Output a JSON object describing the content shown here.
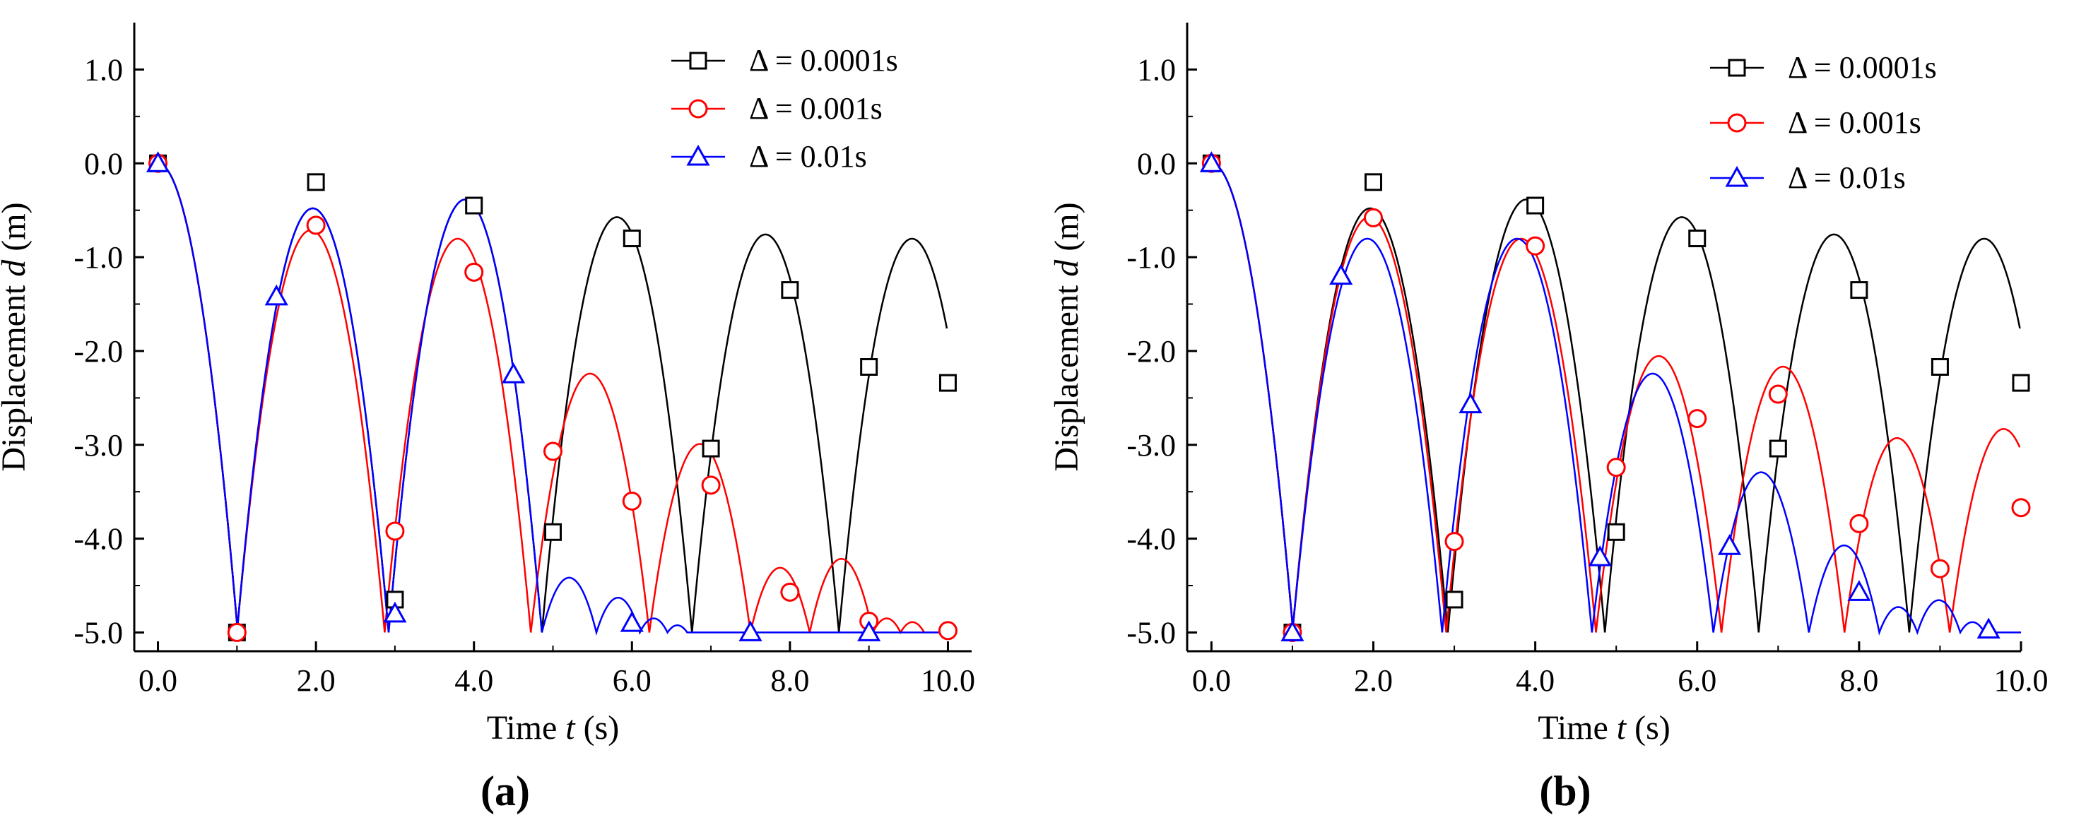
{
  "chart_data": [
    {
      "panel": "a",
      "panel_label": "(a)",
      "type": "line",
      "xlabel": "Time t (s)",
      "xlabel_parts": [
        "Time ",
        "t",
        " (s)"
      ],
      "ylabel": "Displacement d (m)",
      "ylabel_parts": [
        "Displacement ",
        "d",
        " (m)"
      ],
      "xlim": [
        -0.3,
        10.3
      ],
      "ylim": [
        -5.2,
        1.5
      ],
      "xticks": [
        0,
        2,
        4,
        6,
        8,
        10
      ],
      "xtick_labels": [
        "0.0",
        "2.0",
        "4.0",
        "6.0",
        "8.0",
        "10.0"
      ],
      "yticks": [
        1,
        0,
        -1,
        -2,
        -3,
        -4,
        -5
      ],
      "ytick_labels": [
        "1.0",
        "0.0",
        "-1.0",
        "-2.0",
        "-3.0",
        "-4.0",
        "-5.0"
      ],
      "legend_position": "top-right",
      "series": [
        {
          "name": "Δ = 0.0001s",
          "color": "#000000",
          "marker": "square",
          "bounces": [
            [
              0,
              1.0
            ],
            [
              1.0,
              2.92
            ],
            [
              2.92,
              4.86
            ],
            [
              4.86,
              6.76
            ],
            [
              6.76,
              8.62
            ],
            [
              8.62,
              10.47
            ]
          ],
          "markers": [
            [
              0,
              0
            ],
            [
              1,
              -5.0
            ],
            [
              2,
              -0.2
            ],
            [
              3,
              -4.65
            ],
            [
              4,
              -0.45
            ],
            [
              5,
              -3.93
            ],
            [
              6,
              -0.8
            ],
            [
              7,
              -3.04
            ],
            [
              8,
              -1.35
            ],
            [
              9,
              -2.17
            ],
            [
              10,
              -2.34
            ]
          ]
        },
        {
          "name": "Δ = 0.001s",
          "color": "#ff0000",
          "marker": "circle",
          "bounces": [
            [
              0,
              1.0
            ],
            [
              1.0,
              2.87
            ],
            [
              2.87,
              4.72
            ],
            [
              4.72,
              6.22
            ],
            [
              6.22,
              7.5
            ],
            [
              7.5,
              8.25
            ],
            [
              8.25,
              9.05
            ],
            [
              9.05,
              9.4
            ],
            [
              9.4,
              9.7
            ]
          ],
          "markers": [
            [
              0,
              0
            ],
            [
              1,
              -5.0
            ],
            [
              2,
              -0.66
            ],
            [
              3,
              -3.92
            ],
            [
              4,
              -1.16
            ],
            [
              5,
              -3.07
            ],
            [
              6,
              -3.6
            ],
            [
              7,
              -3.43
            ],
            [
              8,
              -4.57
            ],
            [
              9,
              -4.88
            ],
            [
              10,
              -4.98
            ]
          ]
        },
        {
          "name": "Δ = 0.01s",
          "color": "#0000ff",
          "marker": "triangle",
          "bounces": [
            [
              0,
              1.0
            ],
            [
              1.0,
              2.92
            ],
            [
              2.92,
              4.86
            ],
            [
              4.86,
              5.55
            ],
            [
              5.55,
              6.1
            ],
            [
              6.1,
              6.45
            ],
            [
              6.45,
              6.7
            ]
          ],
          "markers": [
            [
              0,
              0
            ],
            [
              1.5,
              -1.42
            ],
            [
              3,
              -4.8
            ],
            [
              4.5,
              -2.25
            ],
            [
              6,
              -4.9
            ],
            [
              7.5,
              -5.0
            ],
            [
              9,
              -5.0
            ]
          ]
        }
      ]
    },
    {
      "panel": "b",
      "panel_label": "(b)",
      "type": "line",
      "xlabel": "Time t (s)",
      "xlabel_parts": [
        "Time ",
        "t",
        " (s)"
      ],
      "ylabel": "Displacement d (m)",
      "ylabel_parts": [
        "Displacement ",
        "d",
        " (m)"
      ],
      "xlim": [
        -0.3,
        10.0
      ],
      "ylim": [
        -5.2,
        1.5
      ],
      "xticks": [
        0,
        2,
        4,
        6,
        8,
        10
      ],
      "xtick_labels": [
        "0.0",
        "2.0",
        "4.0",
        "6.0",
        "8.0",
        "10.0"
      ],
      "yticks": [
        1,
        0,
        -1,
        -2,
        -3,
        -4,
        -5
      ],
      "ytick_labels": [
        "1.0",
        "0.0",
        "-1.0",
        "-2.0",
        "-3.0",
        "-4.0",
        "-5.0"
      ],
      "legend_position": "top-right",
      "series": [
        {
          "name": "Δ = 0.0001s",
          "color": "#000000",
          "marker": "square",
          "bounces": [
            [
              0,
              1.0
            ],
            [
              1.0,
              2.92
            ],
            [
              2.92,
              4.86
            ],
            [
              4.86,
              6.76
            ],
            [
              6.76,
              8.62
            ],
            [
              8.62,
              10.47
            ]
          ],
          "markers": [
            [
              0,
              0
            ],
            [
              1,
              -5.0
            ],
            [
              2,
              -0.2
            ],
            [
              3,
              -4.65
            ],
            [
              4,
              -0.45
            ],
            [
              5,
              -3.93
            ],
            [
              6,
              -0.8
            ],
            [
              7,
              -3.04
            ],
            [
              8,
              -1.35
            ],
            [
              9,
              -2.17
            ],
            [
              10,
              -2.34
            ]
          ]
        },
        {
          "name": "Δ = 0.001s",
          "color": "#ff0000",
          "marker": "circle",
          "bounces": [
            [
              0,
              1.0
            ],
            [
              1.0,
              2.9
            ],
            [
              2.9,
              4.75
            ],
            [
              4.75,
              6.3
            ],
            [
              6.3,
              7.82
            ],
            [
              7.82,
              9.12
            ],
            [
              9.12,
              10.45
            ]
          ],
          "markers": [
            [
              0,
              0
            ],
            [
              1,
              -5.0
            ],
            [
              2,
              -0.58
            ],
            [
              3,
              -4.03
            ],
            [
              4,
              -0.88
            ],
            [
              5,
              -3.24
            ],
            [
              6,
              -2.72
            ],
            [
              7,
              -2.46
            ],
            [
              8,
              -3.84
            ],
            [
              9,
              -4.32
            ],
            [
              10,
              -3.67
            ]
          ]
        },
        {
          "name": "Δ = 0.01s",
          "color": "#0000ff",
          "marker": "triangle",
          "bounces": [
            [
              0,
              1.0
            ],
            [
              1.0,
              2.85
            ],
            [
              2.85,
              4.7
            ],
            [
              4.7,
              6.2
            ],
            [
              6.2,
              7.38
            ],
            [
              7.38,
              8.25
            ],
            [
              8.25,
              8.72
            ],
            [
              8.72,
              9.25
            ],
            [
              9.25,
              9.55
            ]
          ],
          "markers": [
            [
              0,
              0
            ],
            [
              1,
              -5.0
            ],
            [
              1.6,
              -1.2
            ],
            [
              3.2,
              -2.57
            ],
            [
              4.8,
              -4.2
            ],
            [
              6.4,
              -4.08
            ],
            [
              8,
              -4.57
            ],
            [
              9.6,
              -4.97
            ]
          ]
        }
      ]
    }
  ]
}
